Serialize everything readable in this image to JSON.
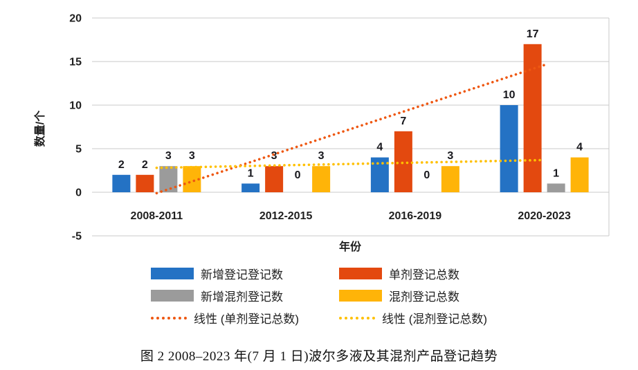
{
  "figure": {
    "caption": "图 2  2008–2023 年(7 月 1 日)波尔多液及其混剂产品登记趋势"
  },
  "chart_data": {
    "type": "bar",
    "title": "",
    "xlabel": "年份",
    "ylabel": "数量/个",
    "ylim": [
      -5,
      20
    ],
    "yticks": [
      20,
      15,
      10,
      5,
      0,
      -5
    ],
    "grid": true,
    "legend_position": "bottom",
    "categories": [
      "2008-2011",
      "2012-2015",
      "2016-2019",
      "2020-2023"
    ],
    "series": [
      {
        "name": "新增登记登记数",
        "color": "#2472C4",
        "values": [
          2,
          1,
          4,
          10
        ]
      },
      {
        "name": "单剂登记总数",
        "color": "#E3490F",
        "values": [
          2,
          3,
          7,
          17
        ]
      },
      {
        "name": "新增混剂登记数",
        "color": "#9B9B9B",
        "values": [
          3,
          0,
          0,
          1
        ]
      },
      {
        "name": "混剂登记总数",
        "color": "#FFB408",
        "values": [
          3,
          3,
          3,
          4
        ]
      }
    ],
    "trendlines": [
      {
        "name": "线性 (单剂登记总数)",
        "color": "#EE5711",
        "start_value": -0.1,
        "end_value": 14.6
      },
      {
        "name": "线性 (混剂登记总数)",
        "color": "#FFC000",
        "start_value": 2.8,
        "end_value": 3.7
      }
    ]
  }
}
